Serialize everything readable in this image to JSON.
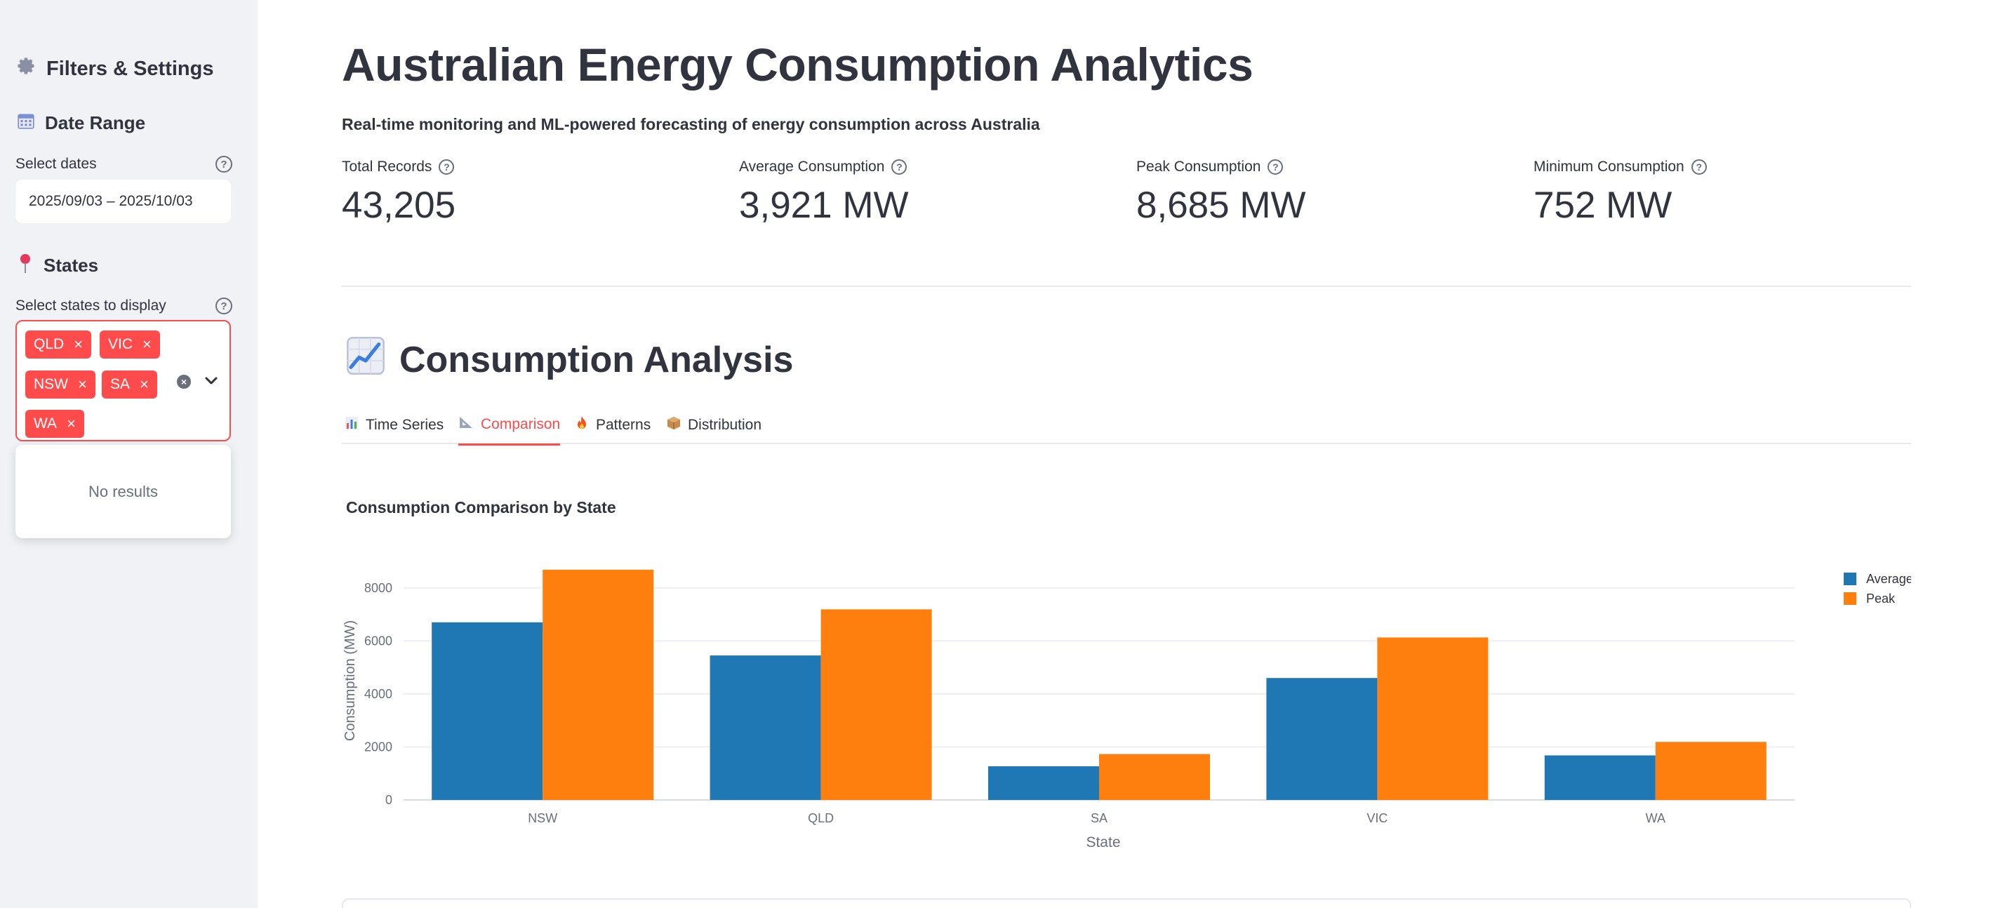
{
  "sidebar": {
    "title": "Filters & Settings",
    "title_icon": "gear-icon",
    "date_section": {
      "heading": "Date Range",
      "icon": "calendar-icon",
      "label": "Select dates",
      "value": "2025/09/03 – 2025/10/03"
    },
    "states_section": {
      "heading": "States",
      "icon": "pushpin-icon",
      "label": "Select states to display",
      "selected": [
        "QLD",
        "VIC",
        "NSW",
        "SA",
        "WA"
      ],
      "dropdown_message": "No results"
    }
  },
  "header": {
    "title": "Australian Energy Consumption Analytics",
    "subtitle": "Real-time monitoring and ML-powered forecasting of energy consumption across Australia"
  },
  "metrics": [
    {
      "label": "Total Records",
      "value": "43,205"
    },
    {
      "label": "Average Consumption",
      "value": "3,921 MW"
    },
    {
      "label": "Peak Consumption",
      "value": "8,685 MW"
    },
    {
      "label": "Minimum Consumption",
      "value": "752 MW"
    }
  ],
  "section": {
    "title": "Consumption Analysis",
    "icon": "line-chart-icon"
  },
  "tabs": [
    {
      "label": "Time Series",
      "icon": "bar-chart-icon",
      "active": false
    },
    {
      "label": "Comparison",
      "icon": "triangle-ruler-icon",
      "active": true
    },
    {
      "label": "Patterns",
      "icon": "fire-icon",
      "active": false
    },
    {
      "label": "Distribution",
      "icon": "package-icon",
      "active": false
    }
  ],
  "chart_data": {
    "type": "bar",
    "title": "Consumption Comparison by State",
    "xlabel": "State",
    "ylabel": "Consumption (MW)",
    "categories": [
      "NSW",
      "QLD",
      "SA",
      "VIC",
      "WA"
    ],
    "series": [
      {
        "name": "Average",
        "values": [
          6700,
          5450,
          1270,
          4600,
          1680
        ],
        "color": "#1f77b4"
      },
      {
        "name": "Peak",
        "values": [
          8685,
          7190,
          1730,
          6130,
          2190
        ],
        "color": "#ff7f0e"
      }
    ],
    "yticks": [
      0,
      2000,
      4000,
      6000,
      8000
    ],
    "ylim": [
      0,
      9000
    ],
    "grid": true,
    "legend": "top-right"
  },
  "colors": {
    "accent": "#ff4b4b",
    "sidebar_bg": "#f0f2f6",
    "text": "#31333f"
  }
}
